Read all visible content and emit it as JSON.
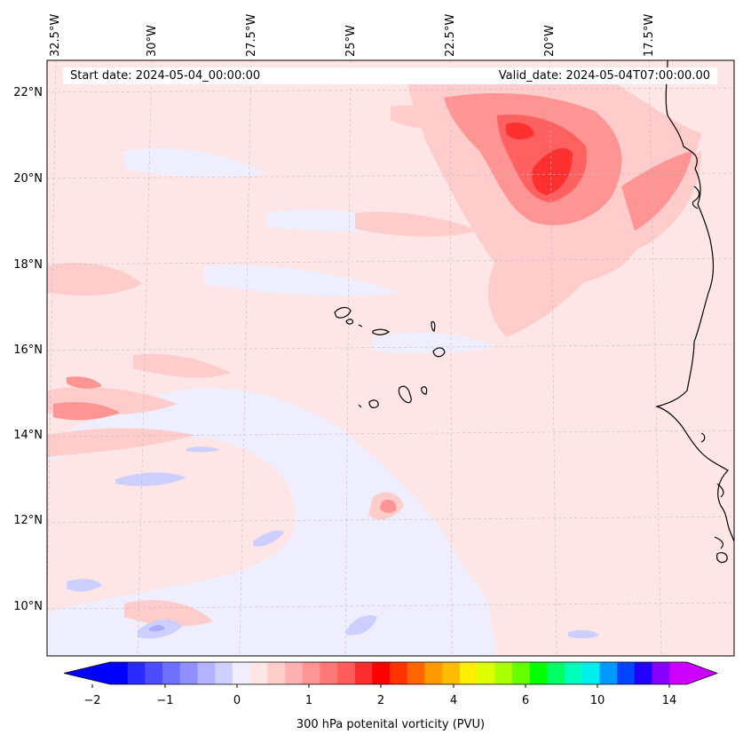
{
  "map": {
    "start_date_label": "Start date: 2024-05-04_00:00:00",
    "valid_date_label": "Valid_date: 2024-05-04T07:00:00.00",
    "longitude_labels": [
      "32.5°W",
      "30°W",
      "27.5°W",
      "25°W",
      "22.5°W",
      "20°W",
      "17.5°W"
    ],
    "latitude_labels": [
      "22°N",
      "20°N",
      "18°N",
      "16°N",
      "14°N",
      "12°N",
      "10°N"
    ],
    "extent": {
      "lon_min": -33.0,
      "lon_max": -15.5,
      "lat_min": 8.9,
      "lat_max": 22.8
    },
    "colors": {
      "coastline": "#000000",
      "gridline": "#bbbbbb",
      "pv_near_zero": "#eeeeff",
      "pv_low_positive": "#ffe6e6",
      "pv_moderate": "#ffc4c4",
      "pv_high": "#ff6060",
      "pv_peak": "#ff3030",
      "pv_negative": "#cccfff"
    }
  },
  "colorbar": {
    "label": "300 hPa potenital vorticity (PVU)",
    "tick_labels": [
      "−2",
      "−1",
      "0",
      "1",
      "2",
      "4",
      "6",
      "10",
      "14"
    ],
    "colors": [
      "#0000ff",
      "#2b2bff",
      "#4d4dff",
      "#7070ff",
      "#9090ff",
      "#b3b3ff",
      "#d0d0ff",
      "#eeeeff",
      "#ffe6e6",
      "#ffcccc",
      "#ffb0b0",
      "#ff9494",
      "#ff7878",
      "#ff5c5c",
      "#ff2e2e",
      "#ff0000",
      "#ff3300",
      "#ff6600",
      "#ff9900",
      "#ffbb00",
      "#ffee00",
      "#ddff00",
      "#aaff00",
      "#66ff00",
      "#00ff00",
      "#00ff66",
      "#00ffbb",
      "#00eeee",
      "#0099ff",
      "#0044ff",
      "#2200ff",
      "#8800ff",
      "#cc00ff"
    ],
    "extend_min_color": "#0000ff",
    "extend_max_color": "#cc00ff"
  }
}
